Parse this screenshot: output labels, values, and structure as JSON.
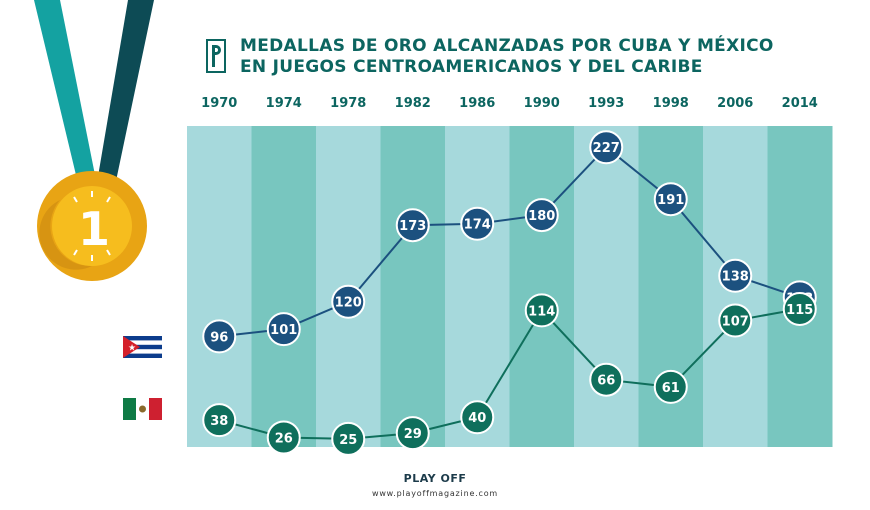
{
  "title": {
    "line1": "MEDALLAS DE ORO ALCANZADAS POR CUBA Y MÉXICO",
    "line2": "EN JUEGOS CENTROAMERICANOS Y DEL CARIBE"
  },
  "medal": {
    "number": "1"
  },
  "footer": {
    "logo": "PLAY OFF",
    "url": "www.playoffmagazine.com"
  },
  "colors": {
    "stripe_light": "#a6d9dc",
    "stripe_dark": "#78c6bf",
    "cuba": "#1c517f",
    "mexico": "#0f6f5c",
    "header_text": "#0c6560"
  },
  "chart_data": {
    "type": "line",
    "categories": [
      "1970",
      "1974",
      "1978",
      "1982",
      "1986",
      "1990",
      "1993",
      "1998",
      "2006",
      "2014"
    ],
    "series": [
      {
        "name": "",
        "flag": "cuba-flag",
        "color": "#1c517f",
        "values": [
          96,
          101,
          120,
          173,
          174,
          180,
          227,
          191,
          138,
          123
        ]
      },
      {
        "name": "",
        "flag": "mexico-flag",
        "color": "#0f6f5c",
        "values": [
          38,
          26,
          25,
          29,
          40,
          114,
          66,
          61,
          107,
          115
        ]
      }
    ],
    "grid": false,
    "legend": "left"
  }
}
